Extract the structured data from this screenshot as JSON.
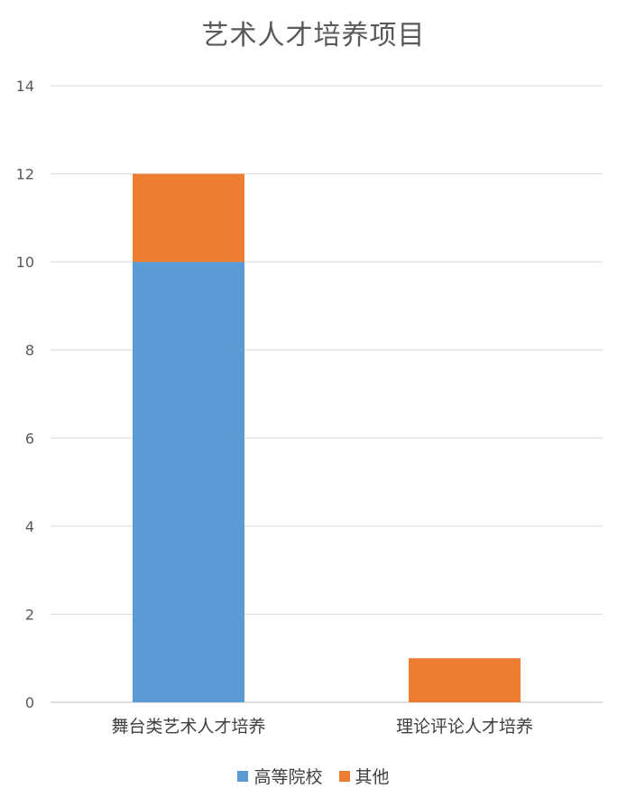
{
  "chart_data": {
    "type": "bar",
    "stacked": true,
    "title": "艺术人才培养项目",
    "categories": [
      "舞台类艺术人才培养",
      "理论评论人才培养"
    ],
    "series": [
      {
        "name": "高等院校",
        "values": [
          10,
          0
        ],
        "color": "#5B9BD5"
      },
      {
        "name": "其他",
        "values": [
          2,
          1
        ],
        "color": "#ED7D31"
      }
    ],
    "ylim": [
      0,
      14
    ],
    "yticks": [
      0,
      2,
      4,
      6,
      8,
      10,
      12,
      14
    ],
    "grid": true,
    "legend_position": "bottom"
  }
}
